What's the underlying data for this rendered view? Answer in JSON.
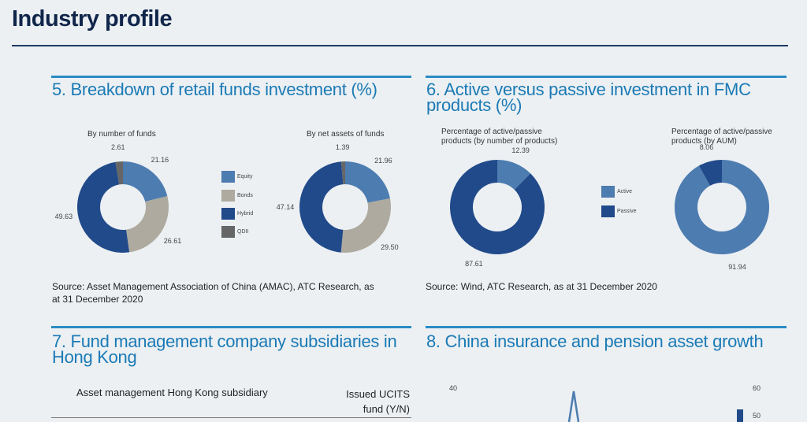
{
  "page_title": "Industry profile",
  "section5": {
    "heading": "5. Breakdown of retail funds investment (%)",
    "source": "Source: Asset Management Association of China (AMAC), ATC Research, as at 31 December 2020"
  },
  "section6": {
    "heading": "6. Active versus passive investment in FMC products (%)",
    "source": "Source: Wind, ATC Research, as at 31 December 2020"
  },
  "section7": {
    "heading": "7. Fund management company subsidiaries in Hong Kong",
    "columns": [
      "Asset management Hong Kong subsidiary",
      "Issued UCITS fund (Y/N)"
    ]
  },
  "section8": {
    "heading": "8. China insurance and pension asset growth"
  },
  "chart_data": [
    {
      "type": "pie",
      "donut": true,
      "title": "By number of funds",
      "categories": [
        "Equity",
        "Bonds",
        "Hybrid",
        "QDII"
      ],
      "values": [
        21.16,
        26.61,
        49.63,
        2.61
      ],
      "colors": [
        "#4d7cb0",
        "#aeaa9f",
        "#214a8a",
        "#666666"
      ],
      "legend": "right"
    },
    {
      "type": "pie",
      "donut": true,
      "title": "By net assets of funds",
      "categories": [
        "Equity",
        "Bonds",
        "Hybrid",
        "QDII"
      ],
      "values": [
        21.96,
        29.5,
        47.14,
        1.39
      ],
      "colors": [
        "#4d7cb0",
        "#aeaa9f",
        "#214a8a",
        "#666666"
      ]
    },
    {
      "type": "pie",
      "donut": true,
      "title": "Percentage of active/passive products (by number of products)",
      "categories": [
        "Active",
        "Passive"
      ],
      "values": [
        12.39,
        87.61
      ],
      "colors": [
        "#4d7cb0",
        "#214a8a"
      ],
      "legend": "right"
    },
    {
      "type": "pie",
      "donut": true,
      "title": "Percentage of active/passive products (by AUM)",
      "categories": [
        "Active",
        "Passive"
      ],
      "values": [
        91.94,
        8.06
      ],
      "colors": [
        "#4d7cb0",
        "#214a8a"
      ]
    },
    {
      "type": "line",
      "title": "",
      "left_ticks": [
        "40"
      ],
      "right_ticks": [
        "60",
        "50"
      ],
      "series_color": "#4d7cb0",
      "bar_color": "#214a8a"
    }
  ]
}
